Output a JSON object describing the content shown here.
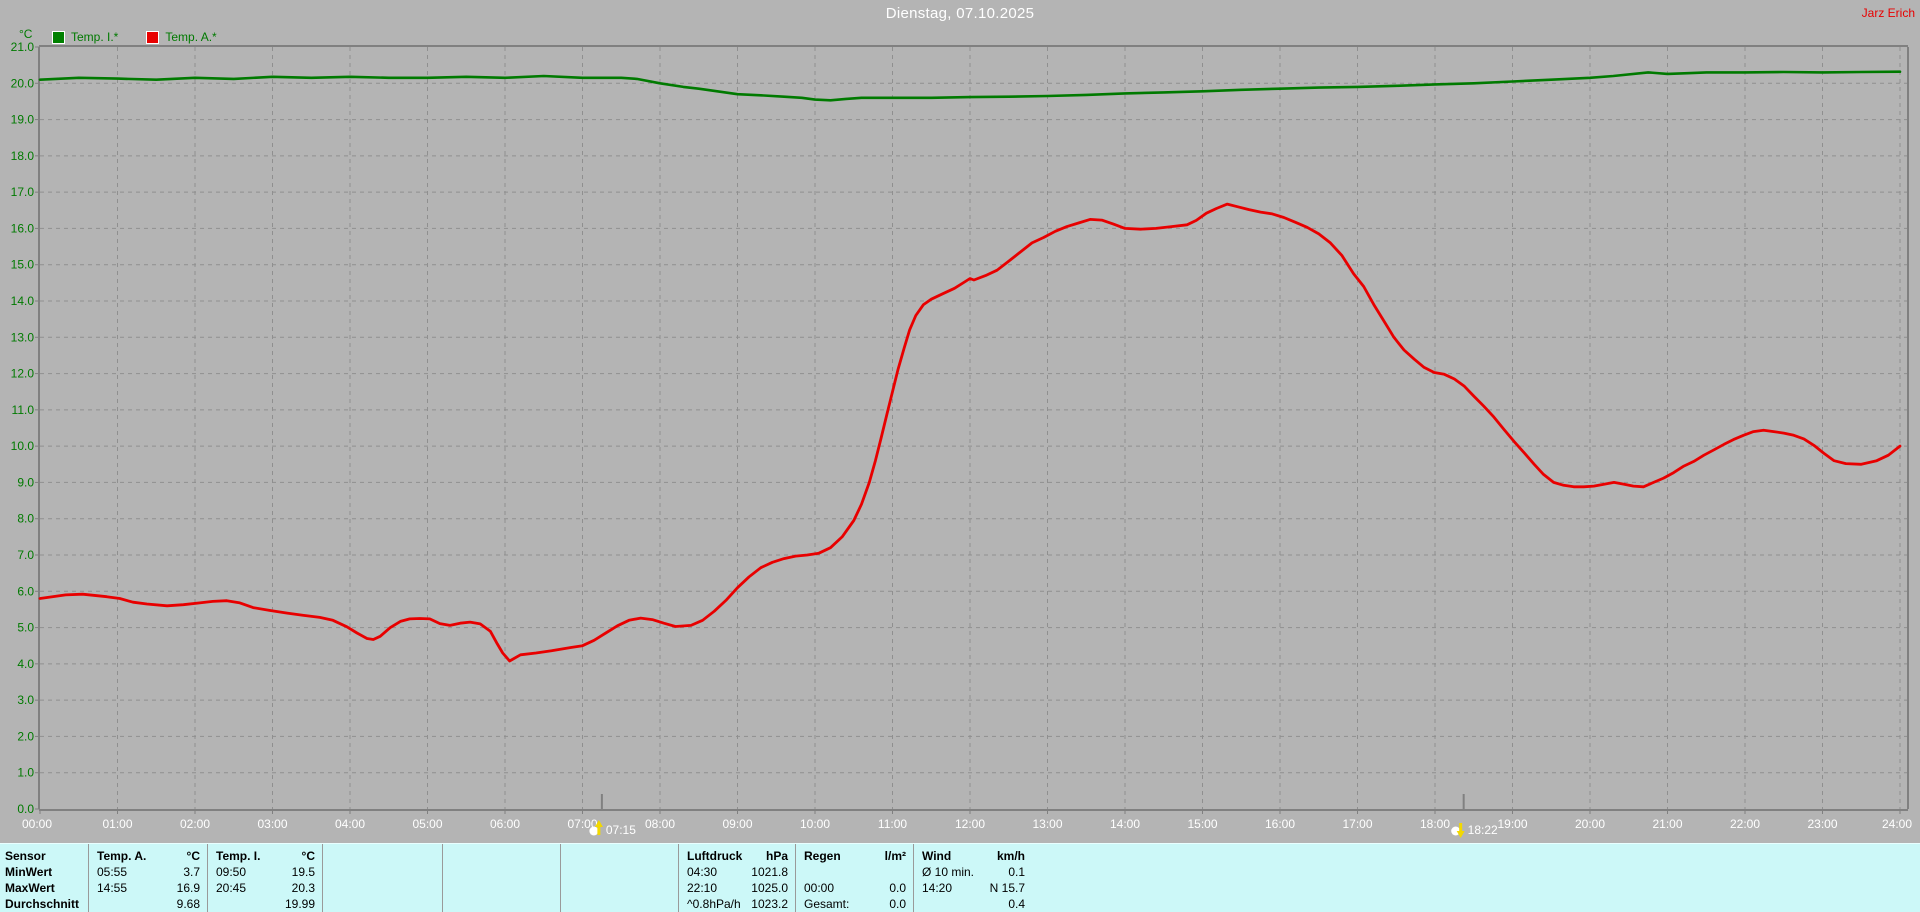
{
  "header": {
    "title": "Dienstag, 07.10.2025",
    "user": "Jarz Erich"
  },
  "legend": [
    {
      "label": "Temp. I.*",
      "color": "#007a00"
    },
    {
      "label": "Temp. A.*",
      "color": "#e80000"
    }
  ],
  "chart_data": {
    "type": "line",
    "title": "Dienstag, 07.10.2025",
    "ylabel": "°C",
    "y_min": 0,
    "y_max": 21,
    "y_tick_step": 1,
    "x_min": 0,
    "x_max": 24,
    "grid": true,
    "axis_label_color": "#007a00",
    "x_label_color": "#ffffff",
    "x_tick_labels": [
      "00:00",
      "01:00",
      "02:00",
      "03:00",
      "04:00",
      "05:00",
      "06:00",
      "07:00",
      "08:00",
      "09:00",
      "10:00",
      "11:00",
      "12:00",
      "13:00",
      "14:00",
      "15:00",
      "16:00",
      "17:00",
      "18:00",
      "19:00",
      "20:00",
      "21:00",
      "22:00",
      "23:00",
      "24:00"
    ],
    "markers": [
      {
        "label": "07:15",
        "hour": 7.25,
        "type": "sunrise"
      },
      {
        "label": "18:22",
        "hour": 18.37,
        "type": "sunset"
      }
    ],
    "series": [
      {
        "name": "Temp. I.*",
        "color": "#007a00",
        "width": 2.6,
        "points": [
          [
            0,
            20.1
          ],
          [
            0.5,
            20.15
          ],
          [
            1,
            20.13
          ],
          [
            1.5,
            20.1
          ],
          [
            2,
            20.15
          ],
          [
            2.5,
            20.12
          ],
          [
            3,
            20.18
          ],
          [
            3.5,
            20.15
          ],
          [
            4,
            20.18
          ],
          [
            4.5,
            20.15
          ],
          [
            5,
            20.15
          ],
          [
            5.5,
            20.18
          ],
          [
            6,
            20.15
          ],
          [
            6.5,
            20.2
          ],
          [
            7,
            20.15
          ],
          [
            7.5,
            20.15
          ],
          [
            7.7,
            20.12
          ],
          [
            8,
            20.0
          ],
          [
            8.3,
            19.9
          ],
          [
            8.5,
            19.85
          ],
          [
            9,
            19.7
          ],
          [
            9.3,
            19.67
          ],
          [
            9.6,
            19.63
          ],
          [
            9.83,
            19.6
          ],
          [
            10,
            19.55
          ],
          [
            10.2,
            19.53
          ],
          [
            10.4,
            19.57
          ],
          [
            10.6,
            19.6
          ],
          [
            11,
            19.6
          ],
          [
            11.5,
            19.6
          ],
          [
            12,
            19.62
          ],
          [
            12.5,
            19.63
          ],
          [
            13,
            19.65
          ],
          [
            13.5,
            19.68
          ],
          [
            14,
            19.72
          ],
          [
            14.5,
            19.75
          ],
          [
            15,
            19.78
          ],
          [
            15.5,
            19.82
          ],
          [
            16,
            19.85
          ],
          [
            16.5,
            19.88
          ],
          [
            17,
            19.9
          ],
          [
            17.5,
            19.93
          ],
          [
            18,
            19.97
          ],
          [
            18.5,
            20.0
          ],
          [
            19,
            20.05
          ],
          [
            19.5,
            20.1
          ],
          [
            20,
            20.15
          ],
          [
            20.3,
            20.2
          ],
          [
            20.75,
            20.3
          ],
          [
            21,
            20.26
          ],
          [
            21.3,
            20.28
          ],
          [
            21.5,
            20.3
          ],
          [
            22,
            20.3
          ],
          [
            22.5,
            20.31
          ],
          [
            23,
            20.3
          ],
          [
            23.5,
            20.31
          ],
          [
            24,
            20.32
          ]
        ]
      },
      {
        "name": "Temp. A.*",
        "color": "#e80000",
        "width": 2.8,
        "points": [
          [
            0,
            5.8
          ],
          [
            0.33,
            5.9
          ],
          [
            0.55,
            5.92
          ],
          [
            0.86,
            5.85
          ],
          [
            1.03,
            5.8
          ],
          [
            1.2,
            5.7
          ],
          [
            1.38,
            5.65
          ],
          [
            1.64,
            5.6
          ],
          [
            1.85,
            5.63
          ],
          [
            2.06,
            5.68
          ],
          [
            2.23,
            5.72
          ],
          [
            2.41,
            5.74
          ],
          [
            2.58,
            5.68
          ],
          [
            2.75,
            5.55
          ],
          [
            2.97,
            5.47
          ],
          [
            3.19,
            5.4
          ],
          [
            3.39,
            5.34
          ],
          [
            3.61,
            5.28
          ],
          [
            3.78,
            5.2
          ],
          [
            3.96,
            5.02
          ],
          [
            4.09,
            4.85
          ],
          [
            4.22,
            4.7
          ],
          [
            4.3,
            4.67
          ],
          [
            4.39,
            4.76
          ],
          [
            4.52,
            5.0
          ],
          [
            4.65,
            5.17
          ],
          [
            4.77,
            5.24
          ],
          [
            4.9,
            5.25
          ],
          [
            5.03,
            5.24
          ],
          [
            5.16,
            5.11
          ],
          [
            5.29,
            5.06
          ],
          [
            5.42,
            5.12
          ],
          [
            5.55,
            5.15
          ],
          [
            5.68,
            5.1
          ],
          [
            5.81,
            4.9
          ],
          [
            5.9,
            4.55
          ],
          [
            5.97,
            4.3
          ],
          [
            6.06,
            4.08
          ],
          [
            6.2,
            4.25
          ],
          [
            6.4,
            4.3
          ],
          [
            6.6,
            4.36
          ],
          [
            6.85,
            4.45
          ],
          [
            7.0,
            4.5
          ],
          [
            7.15,
            4.65
          ],
          [
            7.3,
            4.85
          ],
          [
            7.45,
            5.05
          ],
          [
            7.6,
            5.2
          ],
          [
            7.75,
            5.26
          ],
          [
            7.9,
            5.22
          ],
          [
            8.05,
            5.12
          ],
          [
            8.2,
            5.03
          ],
          [
            8.4,
            5.06
          ],
          [
            8.55,
            5.2
          ],
          [
            8.7,
            5.45
          ],
          [
            8.85,
            5.75
          ],
          [
            9.0,
            6.1
          ],
          [
            9.15,
            6.4
          ],
          [
            9.3,
            6.65
          ],
          [
            9.45,
            6.8
          ],
          [
            9.6,
            6.9
          ],
          [
            9.75,
            6.97
          ],
          [
            9.9,
            7.0
          ],
          [
            10.05,
            7.05
          ],
          [
            10.2,
            7.2
          ],
          [
            10.35,
            7.5
          ],
          [
            10.5,
            7.95
          ],
          [
            10.6,
            8.4
          ],
          [
            10.7,
            9.0
          ],
          [
            10.78,
            9.6
          ],
          [
            10.85,
            10.2
          ],
          [
            10.93,
            10.9
          ],
          [
            11.0,
            11.5
          ],
          [
            11.07,
            12.1
          ],
          [
            11.15,
            12.7
          ],
          [
            11.22,
            13.2
          ],
          [
            11.3,
            13.6
          ],
          [
            11.4,
            13.9
          ],
          [
            11.5,
            14.05
          ],
          [
            11.65,
            14.2
          ],
          [
            11.8,
            14.35
          ],
          [
            11.95,
            14.55
          ],
          [
            12.0,
            14.62
          ],
          [
            12.05,
            14.58
          ],
          [
            12.2,
            14.7
          ],
          [
            12.35,
            14.85
          ],
          [
            12.5,
            15.1
          ],
          [
            12.65,
            15.35
          ],
          [
            12.8,
            15.6
          ],
          [
            12.95,
            15.75
          ],
          [
            13.1,
            15.92
          ],
          [
            13.25,
            16.05
          ],
          [
            13.4,
            16.15
          ],
          [
            13.55,
            16.25
          ],
          [
            13.7,
            16.23
          ],
          [
            13.85,
            16.12
          ],
          [
            14.0,
            16.0
          ],
          [
            14.2,
            15.98
          ],
          [
            14.4,
            16.0
          ],
          [
            14.6,
            16.05
          ],
          [
            14.8,
            16.1
          ],
          [
            14.92,
            16.22
          ],
          [
            15.05,
            16.42
          ],
          [
            15.18,
            16.55
          ],
          [
            15.32,
            16.67
          ],
          [
            15.45,
            16.6
          ],
          [
            15.6,
            16.52
          ],
          [
            15.75,
            16.45
          ],
          [
            15.9,
            16.4
          ],
          [
            16.05,
            16.3
          ],
          [
            16.2,
            16.17
          ],
          [
            16.35,
            16.03
          ],
          [
            16.5,
            15.85
          ],
          [
            16.65,
            15.6
          ],
          [
            16.8,
            15.25
          ],
          [
            16.95,
            14.75
          ],
          [
            17.08,
            14.4
          ],
          [
            17.21,
            13.9
          ],
          [
            17.34,
            13.45
          ],
          [
            17.47,
            13.0
          ],
          [
            17.6,
            12.65
          ],
          [
            17.73,
            12.4
          ],
          [
            17.86,
            12.17
          ],
          [
            17.99,
            12.03
          ],
          [
            18.12,
            11.98
          ],
          [
            18.25,
            11.85
          ],
          [
            18.38,
            11.65
          ],
          [
            18.5,
            11.38
          ],
          [
            18.63,
            11.1
          ],
          [
            18.76,
            10.8
          ],
          [
            18.89,
            10.46
          ],
          [
            19.02,
            10.13
          ],
          [
            19.15,
            9.82
          ],
          [
            19.28,
            9.5
          ],
          [
            19.4,
            9.22
          ],
          [
            19.53,
            9.0
          ],
          [
            19.66,
            8.92
          ],
          [
            19.79,
            8.88
          ],
          [
            19.92,
            8.88
          ],
          [
            20.05,
            8.9
          ],
          [
            20.18,
            8.95
          ],
          [
            20.31,
            9.0
          ],
          [
            20.44,
            8.95
          ],
          [
            20.56,
            8.9
          ],
          [
            20.69,
            8.88
          ],
          [
            20.82,
            9.0
          ],
          [
            20.95,
            9.12
          ],
          [
            21.08,
            9.27
          ],
          [
            21.21,
            9.45
          ],
          [
            21.34,
            9.58
          ],
          [
            21.47,
            9.75
          ],
          [
            21.6,
            9.9
          ],
          [
            21.73,
            10.05
          ],
          [
            21.85,
            10.18
          ],
          [
            21.98,
            10.3
          ],
          [
            22.11,
            10.4
          ],
          [
            22.24,
            10.44
          ],
          [
            22.37,
            10.4
          ],
          [
            22.5,
            10.36
          ],
          [
            22.63,
            10.3
          ],
          [
            22.76,
            10.2
          ],
          [
            22.89,
            10.02
          ],
          [
            23.02,
            9.8
          ],
          [
            23.15,
            9.6
          ],
          [
            23.3,
            9.52
          ],
          [
            23.5,
            9.5
          ],
          [
            23.7,
            9.6
          ],
          [
            23.85,
            9.75
          ],
          [
            24.0,
            10.0
          ]
        ]
      }
    ]
  },
  "table": {
    "row_labels": [
      "Sensor",
      "MinWert",
      "MaxWert",
      "Durchschnitt"
    ],
    "columns": [
      {
        "header": [
          "Temp. A.",
          "°C"
        ],
        "rows": [
          [
            "05:55",
            "3.7"
          ],
          [
            "14:55",
            "16.9"
          ],
          [
            "",
            "9.68"
          ]
        ]
      },
      {
        "header": [
          "Temp. I.",
          "°C"
        ],
        "rows": [
          [
            "09:50",
            "19.5"
          ],
          [
            "20:45",
            "20.3"
          ],
          [
            "",
            "19.99"
          ]
        ]
      },
      {
        "header": [
          "",
          ""
        ],
        "rows": [
          [
            "",
            ""
          ],
          [
            "",
            ""
          ],
          [
            "",
            ""
          ]
        ]
      },
      {
        "header": [
          "",
          ""
        ],
        "rows": [
          [
            "",
            ""
          ],
          [
            "",
            ""
          ],
          [
            "",
            ""
          ]
        ]
      },
      {
        "header": [
          "",
          ""
        ],
        "rows": [
          [
            "",
            ""
          ],
          [
            "",
            ""
          ],
          [
            "",
            ""
          ]
        ]
      },
      {
        "header": [
          "Luftdruck",
          "hPa"
        ],
        "rows": [
          [
            "04:30",
            "1021.8"
          ],
          [
            "22:10",
            "1025.0"
          ],
          [
            "^0.8hPa/h",
            "1023.2"
          ]
        ]
      },
      {
        "header": [
          "Regen",
          "l/m²"
        ],
        "rows": [
          [
            "",
            ""
          ],
          [
            "00:00",
            "0.0"
          ],
          [
            "Gesamt:",
            "0.0"
          ]
        ]
      },
      {
        "header": [
          "Wind",
          "km/h"
        ],
        "rows": [
          [
            "Ø 10 min.",
            "0.1"
          ],
          [
            "14:20",
            "N 15.7"
          ],
          [
            "",
            "0.4"
          ]
        ]
      }
    ]
  }
}
